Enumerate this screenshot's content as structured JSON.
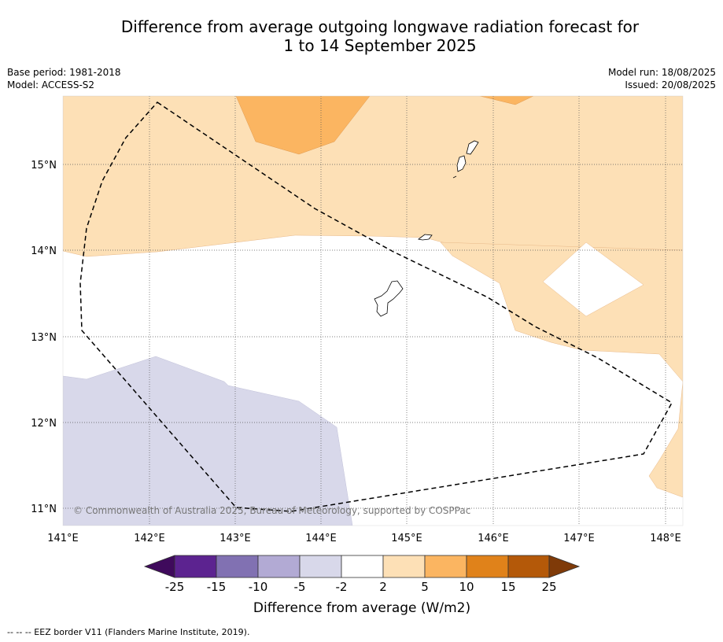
{
  "title_line1": "Difference from average outgoing longwave radiation forecast for",
  "title_line2": "1 to 14 September 2025",
  "base_period": "Base period: 1981-2018",
  "model": "Model: ACCESS-S2",
  "model_run": "Model run: 18/08/2025",
  "issued": "Issued: 20/08/2025",
  "credit": "© Commonwealth of Australia 2025, Bureau of Meteorology, supported by COSPPac",
  "lon_ticks": [
    "141°E",
    "142°E",
    "143°E",
    "144°E",
    "145°E",
    "146°E",
    "147°E",
    "148°E"
  ],
  "lat_ticks": [
    "15°N",
    "14°N",
    "13°N",
    "12°N",
    "11°N"
  ],
  "colorbar": {
    "labels": [
      "-25",
      "-15",
      "-10",
      "-5",
      "-2",
      "2",
      "5",
      "10",
      "15",
      "25"
    ],
    "colors": [
      "#3f0a5c",
      "#5c2390",
      "#8171b2",
      "#b2aad4",
      "#d8d8ea",
      "#ffffff",
      "#fde0b6",
      "#fbb561",
      "#e0821a",
      "#b45909",
      "#7f3a08"
    ],
    "title": "Difference from average (W/m2)"
  },
  "footer": "--  --  -- EEZ border V11 (Flanders Marine Institute, 2019)."
}
